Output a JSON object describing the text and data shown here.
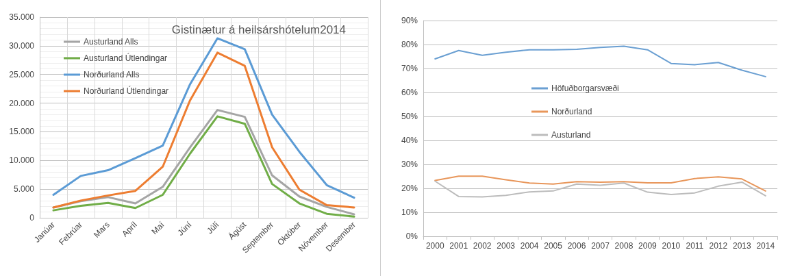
{
  "chart_data": [
    {
      "type": "line",
      "title": "Gistinætur á heilsárshótelum2014",
      "categories": [
        "Janúar",
        "Febrúar",
        "Mars",
        "Apríl",
        "Maí",
        "Júní",
        "Júlí",
        "Ágúst",
        "September",
        "Október",
        "Nóvember",
        "Desember"
      ],
      "series": [
        {
          "name": "Austurland Alls",
          "color": "#a5a5a5",
          "values": [
            1800,
            2900,
            3600,
            2500,
            5400,
            12300,
            18800,
            17600,
            7400,
            3700,
            1900,
            600
          ]
        },
        {
          "name": "Austurland Útlendingar",
          "color": "#70ad47",
          "values": [
            1300,
            2100,
            2600,
            1700,
            4000,
            11200,
            17700,
            16400,
            5900,
            2500,
            700,
            200
          ]
        },
        {
          "name": "Norðurland Alls",
          "color": "#5b9bd5",
          "values": [
            4000,
            7300,
            8300,
            10400,
            12600,
            23300,
            31300,
            29400,
            18000,
            11500,
            5700,
            3500
          ]
        },
        {
          "name": "Norðurland Útlendingar",
          "color": "#ed7d31",
          "values": [
            1800,
            3000,
            3900,
            4700,
            8900,
            20500,
            28800,
            26500,
            12300,
            4900,
            2200,
            1800
          ]
        }
      ],
      "ylim": [
        0,
        35000
      ],
      "yticks": [
        {
          "value": 0,
          "label": "0"
        },
        {
          "value": 5000,
          "label": "5.000"
        },
        {
          "value": 10000,
          "label": "10.000"
        },
        {
          "value": 15000,
          "label": "15.000"
        },
        {
          "value": 20000,
          "label": "20.000"
        },
        {
          "value": 25000,
          "label": "25.000"
        },
        {
          "value": 30000,
          "label": "30.000"
        },
        {
          "value": 35000,
          "label": "35.000"
        }
      ],
      "grid": true,
      "legend": "top left",
      "marker": "none"
    },
    {
      "type": "line",
      "categories": [
        "2000",
        "2001",
        "2002",
        "2003",
        "2004",
        "2005",
        "2006",
        "2007",
        "2008",
        "2009",
        "2010",
        "2011",
        "2012",
        "2013",
        "2014"
      ],
      "series": [
        {
          "name": "Höfuðborgarsvæði",
          "color": "#6a9fd2",
          "values": [
            74,
            77.5,
            75.5,
            76.8,
            77.8,
            77.8,
            78,
            78.8,
            79.3,
            77.8,
            72.1,
            71.6,
            72.5,
            69.3,
            66.6
          ]
        },
        {
          "name": "Norðurland",
          "color": "#e8965a",
          "values": [
            23.3,
            25.1,
            25.1,
            23.6,
            22.2,
            21.8,
            22.8,
            22.6,
            22.8,
            22.3,
            22.3,
            24.1,
            24.8,
            23.9,
            18.9
          ]
        },
        {
          "name": "Austurland",
          "color": "#bcbcbc",
          "values": [
            23,
            16.6,
            16.4,
            17.1,
            18.5,
            18.9,
            21.8,
            21.3,
            22.2,
            18.4,
            17.4,
            18.1,
            20.9,
            22.6,
            16.9
          ]
        }
      ],
      "ylim": [
        0,
        90
      ],
      "yticks": [
        {
          "value": 0,
          "label": "0%"
        },
        {
          "value": 10,
          "label": "10%"
        },
        {
          "value": 20,
          "label": "20%"
        },
        {
          "value": 30,
          "label": "30%"
        },
        {
          "value": 40,
          "label": "40%"
        },
        {
          "value": 50,
          "label": "50%"
        },
        {
          "value": 60,
          "label": "60%"
        },
        {
          "value": 70,
          "label": "70%"
        },
        {
          "value": 80,
          "label": "80%"
        },
        {
          "value": 90,
          "label": "90%"
        }
      ],
      "grid": "y",
      "legend": "center",
      "marker": "none"
    }
  ]
}
